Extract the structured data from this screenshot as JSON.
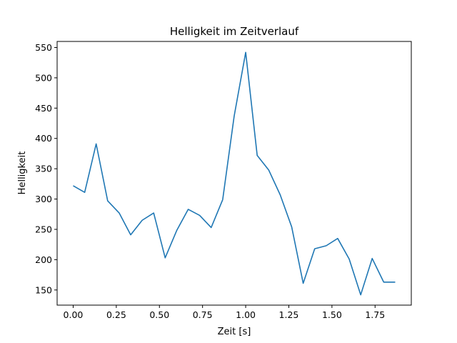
{
  "chart_data": {
    "type": "line",
    "title": "Helligkeit im Zeitverlauf",
    "xlabel": "Zeit [s]",
    "ylabel": "Helligkeit",
    "xlim": [
      -0.093,
      1.96
    ],
    "ylim": [
      125,
      560
    ],
    "xticks": [
      0.0,
      0.25,
      0.5,
      0.75,
      1.0,
      1.25,
      1.5,
      1.75
    ],
    "xtick_labels": [
      "0.00",
      "0.25",
      "0.50",
      "0.75",
      "1.00",
      "1.25",
      "1.50",
      "1.75"
    ],
    "yticks": [
      150,
      200,
      250,
      300,
      350,
      400,
      450,
      500,
      550
    ],
    "ytick_labels": [
      "150",
      "200",
      "250",
      "300",
      "350",
      "400",
      "450",
      "500",
      "550"
    ],
    "grid": false,
    "series": [
      {
        "color": "#1f77b4",
        "x": [
          0.0,
          0.0667,
          0.1333,
          0.2,
          0.2667,
          0.3333,
          0.4,
          0.4667,
          0.5333,
          0.6,
          0.6667,
          0.7333,
          0.8,
          0.8667,
          0.9333,
          1.0,
          1.0667,
          1.1333,
          1.2,
          1.2667,
          1.3333,
          1.4,
          1.4667,
          1.5333,
          1.6,
          1.6667,
          1.7333,
          1.8,
          1.8667
        ],
        "y": [
          322,
          311,
          391,
          297,
          277,
          241,
          265,
          277,
          203,
          248,
          283,
          273,
          253,
          299,
          437,
          542,
          372,
          348,
          307,
          254,
          161,
          218,
          223,
          235,
          201,
          142,
          202,
          163,
          163
        ]
      }
    ]
  }
}
